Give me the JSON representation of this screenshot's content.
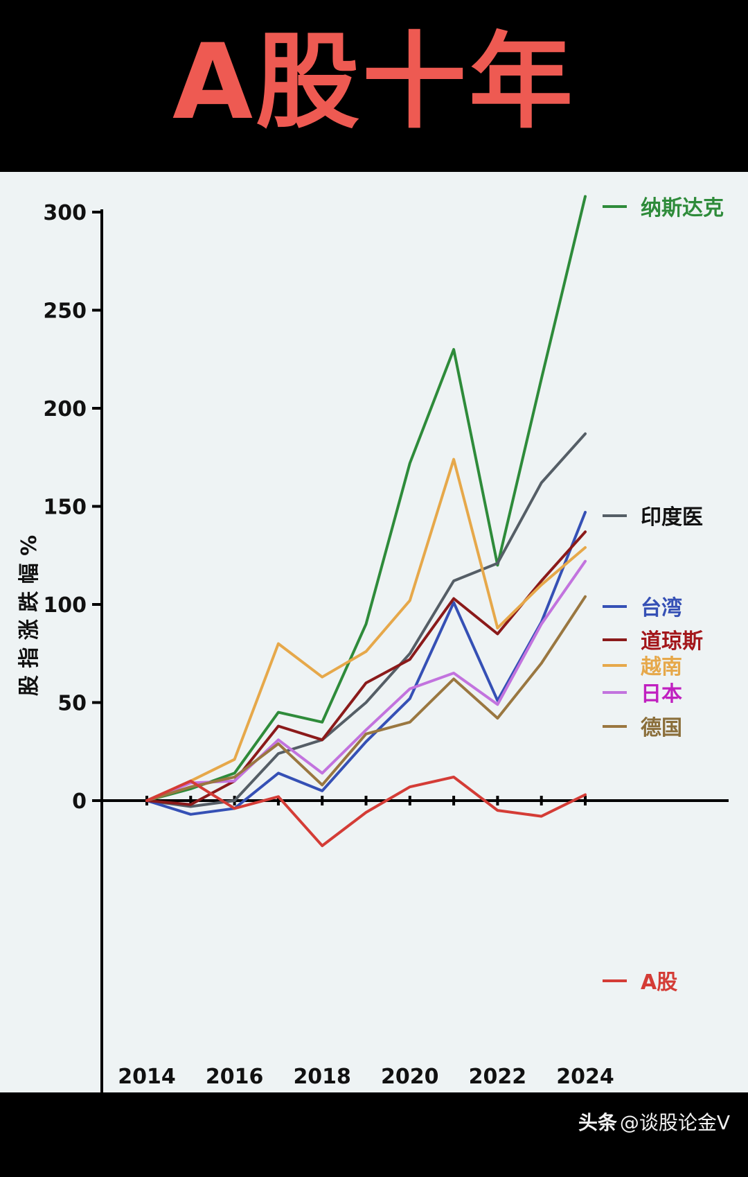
{
  "title": "A股十年",
  "watermark": {
    "brand": "头条",
    "handle": "@谈股论金V"
  },
  "chart_data": {
    "type": "line",
    "title": "A股十年",
    "xlabel": "",
    "ylabel": "股 指 涨 跌 幅 %",
    "xlim": [
      2013.98,
      2024.2
    ],
    "ylim": [
      -38,
      312
    ],
    "x_ticks": [
      2014,
      2016,
      2018,
      2020,
      2022,
      2024
    ],
    "y_ticks": [
      0,
      50,
      100,
      150,
      200,
      250,
      300
    ],
    "grid": false,
    "legend_position": "right, at series end",
    "series": [
      {
        "name": "纳斯达克",
        "color": "#2e8b3a",
        "x": [
          2014,
          2015,
          2016,
          2017,
          2018,
          2019,
          2020,
          2021,
          2022,
          2023,
          2024
        ],
        "y": [
          0,
          6,
          14,
          45,
          40,
          90,
          172,
          230,
          120,
          215,
          308
        ]
      },
      {
        "name": "印度医",
        "color": "#555e66",
        "x": [
          2014,
          2015,
          2016,
          2017,
          2018,
          2019,
          2020,
          2021,
          2022,
          2023,
          2024
        ],
        "y": [
          0,
          -3,
          0,
          24,
          31,
          50,
          75,
          112,
          121,
          162,
          187
        ]
      },
      {
        "name": "台湾",
        "color": "#3550b5",
        "x": [
          2014,
          2015,
          2016,
          2017,
          2018,
          2019,
          2020,
          2021,
          2022,
          2023,
          2024
        ],
        "y": [
          0,
          -7,
          -4,
          14,
          5,
          30,
          52,
          101,
          51,
          91,
          147
        ]
      },
      {
        "name": "道琼斯",
        "color": "#8b1a1a",
        "x": [
          2014,
          2015,
          2016,
          2017,
          2018,
          2019,
          2020,
          2021,
          2022,
          2023,
          2024
        ],
        "y": [
          0,
          -2,
          10,
          38,
          31,
          60,
          72,
          103,
          85,
          112,
          137
        ]
      },
      {
        "name": "越南",
        "color": "#e6a84a",
        "x": [
          2014,
          2015,
          2016,
          2017,
          2018,
          2019,
          2020,
          2021,
          2022,
          2023,
          2024
        ],
        "y": [
          0,
          10,
          21,
          80,
          63,
          76,
          102,
          174,
          88,
          110,
          129
        ]
      },
      {
        "name": "日本",
        "color": "#c273de",
        "x": [
          2014,
          2015,
          2016,
          2017,
          2018,
          2019,
          2020,
          2021,
          2022,
          2023,
          2024
        ],
        "y": [
          0,
          9,
          10,
          31,
          14,
          36,
          57,
          65,
          49,
          90,
          122
        ]
      },
      {
        "name": "德国",
        "color": "#9a7740",
        "x": [
          2014,
          2015,
          2016,
          2017,
          2018,
          2019,
          2020,
          2021,
          2022,
          2023,
          2024
        ],
        "y": [
          0,
          7,
          12,
          29,
          8,
          34,
          40,
          62,
          42,
          70,
          104
        ]
      },
      {
        "name": "A股",
        "color": "#d43c36",
        "x": [
          2014,
          2015,
          2016,
          2017,
          2018,
          2019,
          2020,
          2021,
          2022,
          2023,
          2024
        ],
        "y": [
          0,
          10,
          -4,
          2,
          -23,
          -6,
          7,
          12,
          -5,
          -8,
          3
        ]
      }
    ],
    "legend": [
      {
        "label": "纳斯达克",
        "color": "#2e8b3a",
        "text_color": "#2e8b3a"
      },
      {
        "label": "印度医",
        "color": "#555e66",
        "text_color": "#111111"
      },
      {
        "label": "台湾",
        "color": "#3550b5",
        "text_color": "#3550b5"
      },
      {
        "label": "道琼斯",
        "color": "#8b1a1a",
        "text_color": "#a3161a"
      },
      {
        "label": "越南",
        "color": "#e6a84a",
        "text_color": "#e6a84a"
      },
      {
        "label": "日本",
        "color": "#c273de",
        "text_color": "#c020c0"
      },
      {
        "label": "德国",
        "color": "#9a7740",
        "text_color": "#8a6e3a"
      },
      {
        "label": "A股",
        "color": "#d43c36",
        "text_color": "#d43c36"
      }
    ]
  }
}
